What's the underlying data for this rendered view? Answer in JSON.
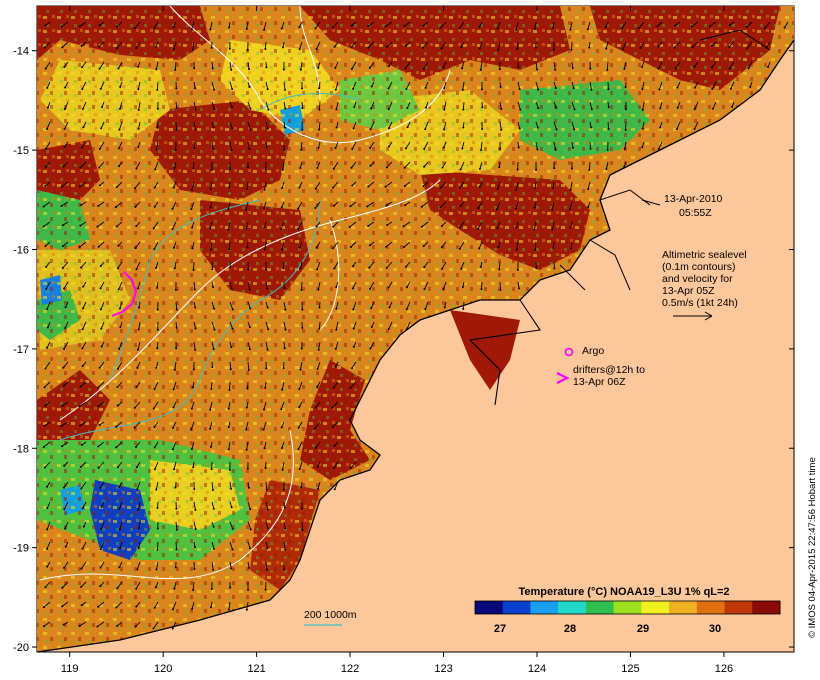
{
  "map": {
    "lon_ticks": [
      "119",
      "120",
      "121",
      "122",
      "123",
      "124",
      "125",
      "126"
    ],
    "lat_ticks": [
      "-14",
      "-15",
      "-16",
      "-17",
      "-18",
      "-19",
      "-20"
    ],
    "lon_range": [
      118.65,
      126.75
    ],
    "lat_range": [
      -20.05,
      -13.55
    ]
  },
  "annotations": {
    "date": "13-Apr-2010",
    "time": "05:55Z",
    "altimetry_lines": [
      "Altimetric sealevel",
      "(0.1m contours)",
      "and velocity for",
      "13-Apr 05Z",
      "0.5m/s (1kt 24h)"
    ],
    "argo_label": "Argo",
    "drifter_lines": [
      "drifters@12h to",
      "13-Apr 06Z"
    ],
    "depth_label": "200  1000m"
  },
  "colorbar": {
    "title": "Temperature (°C) NOAA19_L3U 1% qL=2",
    "ticks": [
      "27",
      "28",
      "29",
      "30"
    ],
    "colors": [
      "#08087a",
      "#0a3fd0",
      "#18a0f0",
      "#20d8c8",
      "#30c050",
      "#9ee020",
      "#f0f020",
      "#f0b020",
      "#e07010",
      "#c03808",
      "#8a0a04"
    ]
  },
  "credit": "© IMOS 04-Apr-2015 22:47:56 Hobart time",
  "colors": {
    "land": "#fcc79a",
    "ocean_warm": "#a01806",
    "ocean_orange": "#d9861e",
    "ocean_yellow": "#e8c820",
    "ocean_green": "#40b848",
    "ocean_blue": "#1040c0",
    "contour": "#ffffff",
    "isobath": "#40c0c0",
    "drifter": "#ff00ff"
  }
}
